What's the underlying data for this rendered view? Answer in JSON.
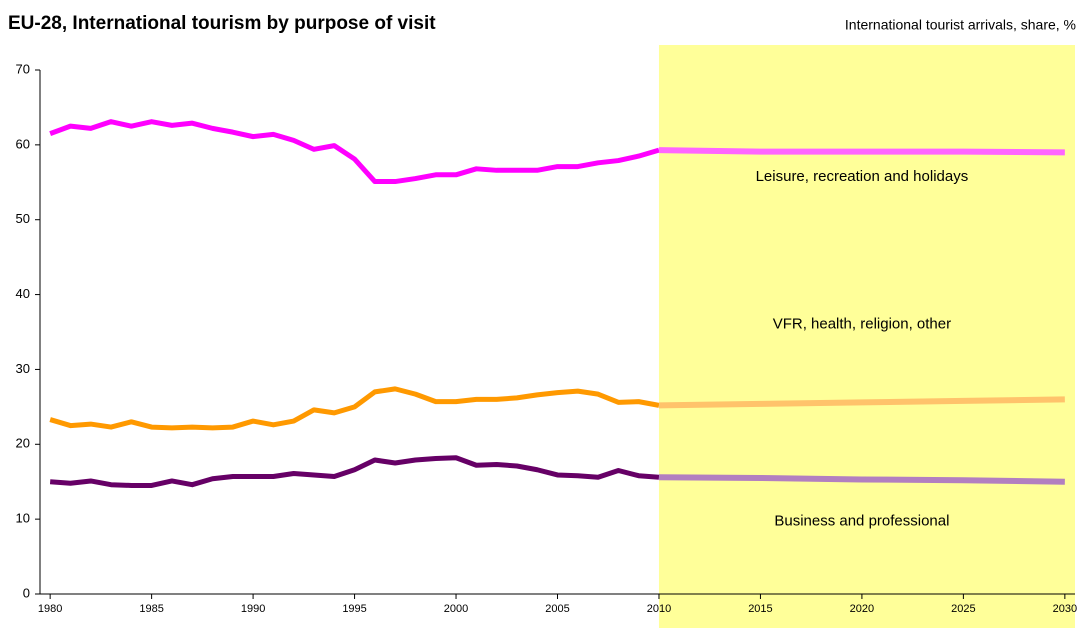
{
  "chart_data": {
    "type": "line",
    "title": "EU-28, International tourism by purpose of visit",
    "subtitle": "International tourist arrivals, share, %",
    "x": [
      1980,
      1981,
      1982,
      1983,
      1984,
      1985,
      1986,
      1987,
      1988,
      1989,
      1990,
      1991,
      1992,
      1993,
      1994,
      1995,
      1996,
      1997,
      1998,
      1999,
      2000,
      2001,
      2002,
      2003,
      2004,
      2005,
      2006,
      2007,
      2008,
      2009,
      2010
    ],
    "projection_x": [
      2010,
      2015,
      2020,
      2025,
      2030
    ],
    "projection_start": 2010,
    "projection_shade": "#ffff99",
    "series": [
      {
        "name": "Leisure, recreation and holidays",
        "color": "#ff00ff",
        "projection_color": "#ff66ff",
        "values": [
          61.5,
          62.5,
          62.2,
          63.1,
          62.5,
          63.1,
          62.6,
          62.9,
          62.2,
          61.7,
          61.1,
          61.4,
          60.6,
          59.4,
          59.9,
          58.1,
          55.1,
          55.1,
          55.5,
          56.0,
          56.0,
          56.8,
          56.6,
          56.6,
          56.6,
          57.1,
          57.1,
          57.6,
          57.9,
          58.5,
          59.3
        ],
        "projection_values": [
          59.3,
          59.1,
          59.1,
          59.1,
          59.0
        ]
      },
      {
        "name": "VFR, health, religion, other",
        "color": "#ff9900",
        "projection_color": "#ffc36b",
        "values": [
          23.3,
          22.5,
          22.7,
          22.3,
          23.0,
          22.3,
          22.2,
          22.3,
          22.2,
          22.3,
          23.1,
          22.6,
          23.1,
          24.6,
          24.2,
          25.0,
          27.0,
          27.4,
          26.7,
          25.7,
          25.7,
          26.0,
          26.0,
          26.2,
          26.6,
          26.9,
          27.1,
          26.7,
          25.6,
          25.7,
          25.2
        ],
        "projection_values": [
          25.2,
          25.4,
          25.6,
          25.8,
          26.0
        ]
      },
      {
        "name": "Business and professional",
        "color": "#660066",
        "projection_color": "#b27fc0",
        "values": [
          15.0,
          14.8,
          15.1,
          14.6,
          14.5,
          14.5,
          15.1,
          14.6,
          15.4,
          15.7,
          15.7,
          15.7,
          16.1,
          15.9,
          15.7,
          16.6,
          17.9,
          17.5,
          17.9,
          18.1,
          18.2,
          17.2,
          17.3,
          17.1,
          16.6,
          15.9,
          15.8,
          15.6,
          16.5,
          15.8,
          15.6
        ],
        "projection_values": [
          15.6,
          15.5,
          15.3,
          15.2,
          15.0
        ]
      }
    ],
    "xlim": [
      1979.5,
      2030.5
    ],
    "xticks": [
      1980,
      1985,
      1990,
      1995,
      2000,
      2005,
      2010,
      2015,
      2020,
      2025,
      2030
    ],
    "ylim": [
      0,
      70
    ],
    "yticks": [
      0,
      10,
      20,
      30,
      40,
      50,
      60,
      70
    ]
  }
}
